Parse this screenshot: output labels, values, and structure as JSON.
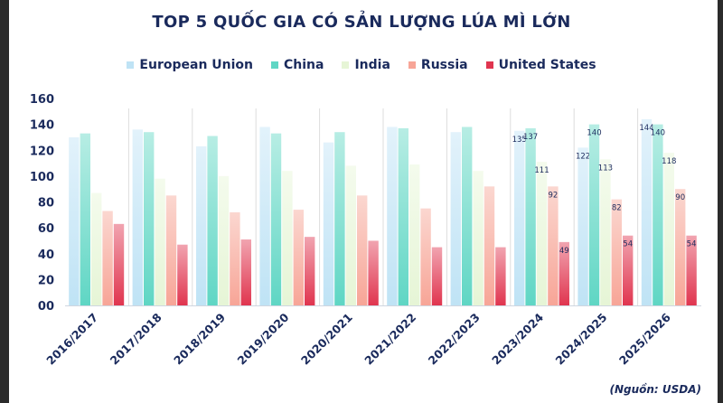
{
  "chart_data": {
    "type": "bar",
    "title": "TOP 5 QUỐC GIA CÓ SẢN LƯỢNG LÚA MÌ LỚN",
    "categories": [
      "2016/2017",
      "2017/2018",
      "2018/2019",
      "2019/2020",
      "2020/2021",
      "2021/2022",
      "2022/2023",
      "2023/2024",
      "2024/2025",
      "2025/2026"
    ],
    "series": [
      {
        "name": "European Union",
        "color": "#bfe3f5",
        "values": [
          130,
          136,
          123,
          138,
          126,
          138,
          134,
          135,
          122,
          144
        ]
      },
      {
        "name": "China",
        "color": "#5fd6c4",
        "values": [
          133,
          134,
          131,
          133,
          134,
          137,
          138,
          137,
          140,
          140
        ]
      },
      {
        "name": "India",
        "color": "#e6f5d6",
        "values": [
          87,
          98,
          100,
          104,
          108,
          109,
          104,
          111,
          113,
          118
        ]
      },
      {
        "name": "Russia",
        "color": "#f7a597",
        "values": [
          73,
          85,
          72,
          74,
          85,
          75,
          92,
          92,
          82,
          90
        ]
      },
      {
        "name": "United States",
        "color": "#e0354f",
        "values": [
          63,
          47,
          51,
          53,
          50,
          45,
          45,
          49,
          54,
          54
        ]
      }
    ],
    "labeled_categories": [
      "2023/2024",
      "2024/2025",
      "2025/2026"
    ],
    "yticks": [
      "00",
      "20",
      "40",
      "60",
      "80",
      "100",
      "120",
      "140",
      "160"
    ],
    "ylim": [
      0,
      160
    ],
    "grid": false,
    "legend_position": "top-center",
    "source": "(Nguồn: USDA)"
  }
}
